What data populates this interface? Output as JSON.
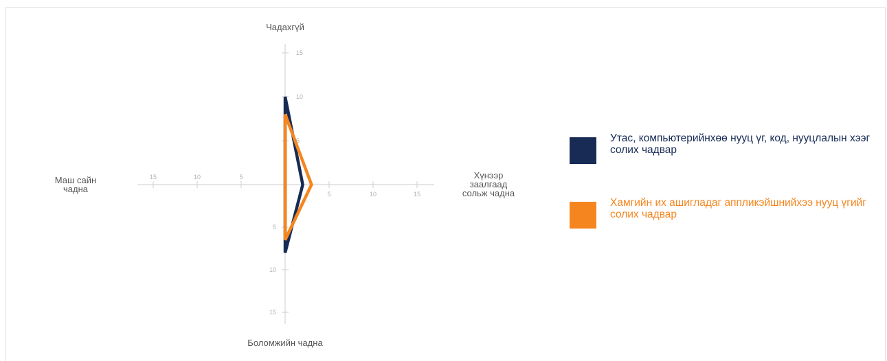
{
  "chart_data": {
    "type": "radar",
    "axes": [
      {
        "key": "top",
        "label": "Чадахгүй",
        "ticks": [
          "5",
          "10",
          "15"
        ]
      },
      {
        "key": "right",
        "label": "Хүнээр заалгаад сольж чадна",
        "ticks": [
          "5",
          "10",
          "15"
        ]
      },
      {
        "key": "bottom",
        "label": "Боломжийн чадна",
        "ticks": [
          "5",
          "10",
          "15"
        ]
      },
      {
        "key": "left",
        "label": "Маш сайн чадна",
        "ticks": [
          "5",
          "10",
          "15"
        ]
      }
    ],
    "range": [
      0,
      15
    ],
    "series": [
      {
        "name": "Утас, компьютерийнхөө нууц үг, код, нууцлалын хээг солих чадвар",
        "color": "#172b55",
        "values": {
          "top": 10,
          "right": 2,
          "bottom": 8,
          "left": 0
        }
      },
      {
        "name": "Хамгийн их ашигладаг аппликэйшнийхээ нууц үгийг солих чадвар",
        "color": "#f5861f",
        "values": {
          "top": 8,
          "right": 3,
          "bottom": 6.5,
          "left": 0
        }
      }
    ],
    "legend_position": "right"
  },
  "colors": {
    "axis": "#cccccc",
    "tick_text": "#b0b0b0",
    "label_text": "#555555"
  }
}
